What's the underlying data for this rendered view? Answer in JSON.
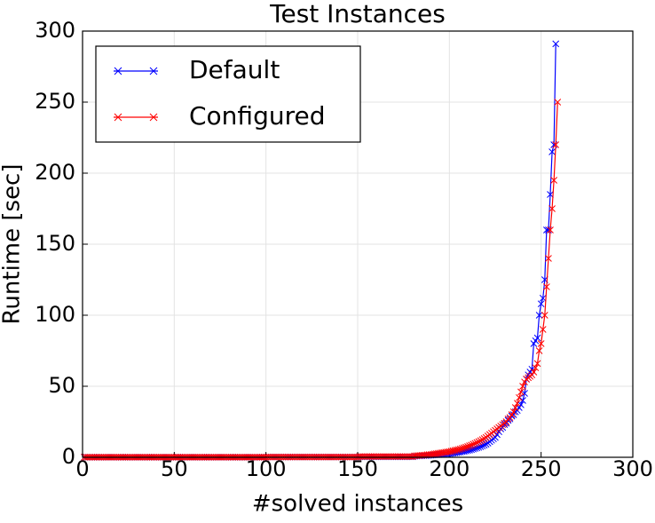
{
  "chart_data": {
    "type": "line",
    "title": "Test Instances",
    "x_label": "#solved instances",
    "y_label": "Runtime [sec]",
    "xlim": [
      0,
      300
    ],
    "ylim": [
      0,
      300
    ],
    "xticks": [
      0,
      50,
      100,
      150,
      200,
      250,
      300
    ],
    "yticks": [
      0,
      50,
      100,
      150,
      200,
      250,
      300
    ],
    "grid": true,
    "legend": "upper left",
    "x": [
      1,
      2,
      3,
      4,
      5,
      6,
      7,
      8,
      9,
      10,
      11,
      12,
      13,
      14,
      15,
      16,
      17,
      18,
      19,
      20,
      21,
      22,
      23,
      24,
      25,
      26,
      27,
      28,
      29,
      30,
      31,
      32,
      33,
      34,
      35,
      36,
      37,
      38,
      39,
      40,
      41,
      42,
      43,
      44,
      45,
      46,
      47,
      48,
      49,
      50,
      51,
      52,
      53,
      54,
      55,
      56,
      57,
      58,
      59,
      60,
      61,
      62,
      63,
      64,
      65,
      66,
      67,
      68,
      69,
      70,
      71,
      72,
      73,
      74,
      75,
      76,
      77,
      78,
      79,
      80,
      81,
      82,
      83,
      84,
      85,
      86,
      87,
      88,
      89,
      90,
      91,
      92,
      93,
      94,
      95,
      96,
      97,
      98,
      99,
      100,
      101,
      102,
      103,
      104,
      105,
      106,
      107,
      108,
      109,
      110,
      111,
      112,
      113,
      114,
      115,
      116,
      117,
      118,
      119,
      120,
      121,
      122,
      123,
      124,
      125,
      126,
      127,
      128,
      129,
      130,
      131,
      132,
      133,
      134,
      135,
      136,
      137,
      138,
      139,
      140,
      141,
      142,
      143,
      144,
      145,
      146,
      147,
      148,
      149,
      150,
      151,
      152,
      153,
      154,
      155,
      156,
      157,
      158,
      159,
      160,
      161,
      162,
      163,
      164,
      165,
      166,
      167,
      168,
      169,
      170,
      171,
      172,
      173,
      174,
      175,
      176,
      177,
      178,
      179,
      180,
      181,
      182,
      183,
      184,
      185,
      186,
      187,
      188,
      189,
      190,
      191,
      192,
      193,
      194,
      195,
      196,
      197,
      198,
      199,
      200,
      201,
      202,
      203,
      204,
      205,
      206,
      207,
      208,
      209,
      210,
      211,
      212,
      213,
      214,
      215,
      216,
      217,
      218,
      219,
      220,
      221,
      222,
      223,
      224,
      225,
      226,
      227,
      228,
      229,
      230,
      231,
      232,
      233,
      234,
      235,
      236,
      237,
      238,
      239,
      240,
      241,
      242,
      243,
      244,
      245,
      246,
      247,
      248,
      249,
      250,
      251,
      252,
      253,
      254,
      255,
      256,
      257,
      258,
      259
    ],
    "series": [
      {
        "name": "Default",
        "color": "#0000ff",
        "values": [
          0.1,
          0.1,
          0.1,
          0.1,
          0.1,
          0.1,
          0.1,
          0.1,
          0.1,
          0.1,
          0.1,
          0.1,
          0.1,
          0.1,
          0.1,
          0.1,
          0.1,
          0.1,
          0.1,
          0.1,
          0.1,
          0.1,
          0.1,
          0.1,
          0.1,
          0.1,
          0.1,
          0.1,
          0.1,
          0.1,
          0.1,
          0.1,
          0.1,
          0.1,
          0.1,
          0.1,
          0.1,
          0.1,
          0.1,
          0.1,
          0.1,
          0.1,
          0.1,
          0.1,
          0.1,
          0.1,
          0.1,
          0.1,
          0.1,
          0.1,
          0.1,
          0.1,
          0.1,
          0.1,
          0.1,
          0.1,
          0.1,
          0.1,
          0.1,
          0.1,
          0.1,
          0.1,
          0.1,
          0.1,
          0.1,
          0.1,
          0.1,
          0.1,
          0.1,
          0.1,
          0.1,
          0.1,
          0.1,
          0.1,
          0.1,
          0.1,
          0.1,
          0.1,
          0.1,
          0.1,
          0.1,
          0.1,
          0.1,
          0.1,
          0.1,
          0.1,
          0.1,
          0.1,
          0.1,
          0.1,
          0.1,
          0.1,
          0.1,
          0.1,
          0.1,
          0.1,
          0.1,
          0.1,
          0.1,
          0.1,
          0.2,
          0.2,
          0.2,
          0.2,
          0.2,
          0.2,
          0.2,
          0.2,
          0.2,
          0.2,
          0.2,
          0.2,
          0.2,
          0.2,
          0.2,
          0.2,
          0.2,
          0.2,
          0.2,
          0.2,
          0.2,
          0.2,
          0.2,
          0.2,
          0.2,
          0.2,
          0.2,
          0.2,
          0.2,
          0.2,
          0.2,
          0.2,
          0.2,
          0.2,
          0.2,
          0.2,
          0.2,
          0.2,
          0.2,
          0.2,
          0.2,
          0.2,
          0.2,
          0.2,
          0.2,
          0.2,
          0.2,
          0.2,
          0.2,
          0.2,
          0.4,
          0.4,
          0.4,
          0.4,
          0.4,
          0.4,
          0.4,
          0.4,
          0.4,
          0.4,
          0.4,
          0.4,
          0.4,
          0.4,
          0.4,
          0.4,
          0.4,
          0.4,
          0.4,
          0.4,
          0.4,
          0.4,
          0.4,
          0.4,
          0.4,
          0.4,
          0.4,
          0.4,
          0.4,
          0.4,
          0.8,
          0.9,
          1,
          1,
          1.1,
          1.2,
          1.2,
          1.3,
          1.4,
          1.5,
          1.6,
          1.7,
          1.8,
          1.9,
          2,
          2.1,
          2.2,
          2.3,
          2.4,
          2.5,
          2.7,
          2.9,
          3.1,
          3.3,
          3.5,
          3.7,
          4,
          4.2,
          4.5,
          4.8,
          5.1,
          5.4,
          5.8,
          6.2,
          6.6,
          7,
          7.5,
          8,
          8.6,
          9.2,
          10,
          11,
          12,
          13,
          14,
          16,
          18,
          20,
          21,
          23,
          24,
          26,
          27,
          29,
          30,
          32,
          33,
          35,
          37,
          40,
          45,
          55,
          58,
          60,
          62,
          80,
          82,
          84,
          100,
          108,
          112,
          125,
          160,
          160,
          185,
          215,
          220,
          291,
          null
        ]
      },
      {
        "name": "Configured",
        "color": "#ff0000",
        "values": [
          0.1,
          0.1,
          0.1,
          0.1,
          0.1,
          0.1,
          0.1,
          0.1,
          0.1,
          0.1,
          0.1,
          0.1,
          0.1,
          0.1,
          0.1,
          0.1,
          0.1,
          0.1,
          0.1,
          0.1,
          0.1,
          0.1,
          0.1,
          0.1,
          0.1,
          0.1,
          0.1,
          0.1,
          0.1,
          0.1,
          0.1,
          0.1,
          0.1,
          0.1,
          0.1,
          0.1,
          0.1,
          0.1,
          0.1,
          0.1,
          0.1,
          0.1,
          0.1,
          0.1,
          0.1,
          0.1,
          0.1,
          0.1,
          0.1,
          0.1,
          0.1,
          0.1,
          0.1,
          0.1,
          0.1,
          0.1,
          0.1,
          0.1,
          0.1,
          0.1,
          0.1,
          0.1,
          0.1,
          0.1,
          0.1,
          0.1,
          0.1,
          0.1,
          0.1,
          0.1,
          0.1,
          0.1,
          0.1,
          0.1,
          0.1,
          0.1,
          0.1,
          0.1,
          0.1,
          0.1,
          0.1,
          0.1,
          0.1,
          0.1,
          0.1,
          0.1,
          0.1,
          0.1,
          0.1,
          0.1,
          0.1,
          0.1,
          0.1,
          0.1,
          0.1,
          0.1,
          0.1,
          0.1,
          0.1,
          0.1,
          0.2,
          0.2,
          0.2,
          0.2,
          0.2,
          0.2,
          0.2,
          0.2,
          0.2,
          0.2,
          0.2,
          0.2,
          0.2,
          0.2,
          0.2,
          0.2,
          0.2,
          0.2,
          0.2,
          0.2,
          0.2,
          0.2,
          0.2,
          0.2,
          0.2,
          0.2,
          0.2,
          0.2,
          0.2,
          0.2,
          0.2,
          0.2,
          0.2,
          0.2,
          0.2,
          0.2,
          0.2,
          0.2,
          0.2,
          0.2,
          0.2,
          0.2,
          0.2,
          0.2,
          0.2,
          0.2,
          0.2,
          0.2,
          0.2,
          0.2,
          0.5,
          0.5,
          0.5,
          0.5,
          0.5,
          0.5,
          0.5,
          0.5,
          0.5,
          0.5,
          0.5,
          0.5,
          0.5,
          0.5,
          0.5,
          0.5,
          0.5,
          0.5,
          0.5,
          0.5,
          0.5,
          0.5,
          0.5,
          0.5,
          0.5,
          0.5,
          0.5,
          0.5,
          0.5,
          0.5,
          1,
          1.1,
          1.2,
          1.3,
          1.4,
          1.5,
          1.6,
          1.8,
          1.9,
          2,
          2.2,
          2.4,
          2.6,
          2.8,
          3,
          3.2,
          3.4,
          3.6,
          3.8,
          4,
          4.3,
          4.6,
          4.9,
          5.2,
          5.5,
          5.9,
          6.3,
          6.7,
          7.1,
          7.6,
          8.1,
          8.6,
          9.2,
          9.8,
          10.4,
          11,
          11.7,
          12.4,
          13.2,
          14,
          15,
          16,
          17,
          18,
          19,
          20,
          21,
          22,
          23,
          24,
          25,
          27,
          28,
          30,
          32,
          35,
          38,
          42,
          46,
          50,
          53,
          55,
          56,
          57,
          58,
          60,
          63,
          66,
          75,
          80,
          90,
          100,
          120,
          140,
          160,
          175,
          195,
          220,
          250
        ]
      }
    ]
  }
}
